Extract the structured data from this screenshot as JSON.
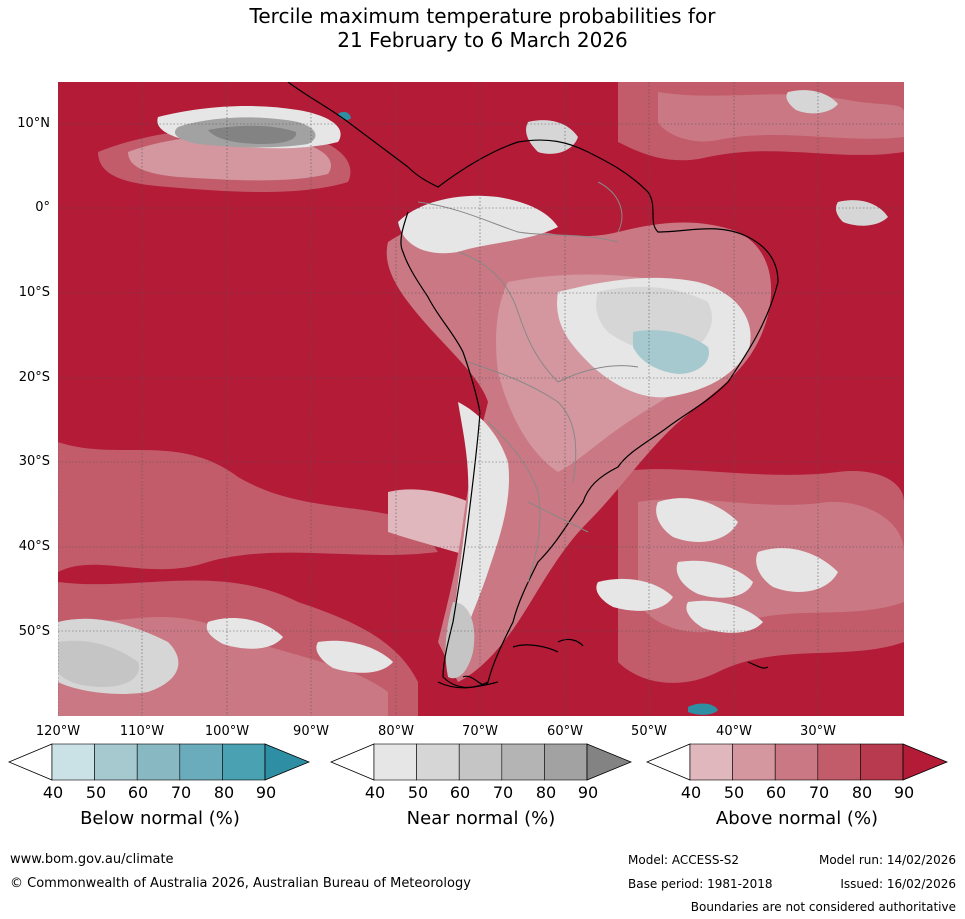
{
  "title": {
    "line1": "Tercile maximum temperature probabilities for",
    "line2": "21 February to 6 March 2026"
  },
  "axes": {
    "lat_labels": [
      "10°N",
      "0°",
      "10°S",
      "20°S",
      "30°S",
      "40°S",
      "50°S"
    ],
    "lon_labels": [
      "120°W",
      "110°W",
      "100°W",
      "90°W",
      "80°W",
      "70°W",
      "60°W",
      "50°W",
      "40°W",
      "30°W"
    ]
  },
  "legends": {
    "below": {
      "label": "Below normal (%)",
      "ticks": [
        "40",
        "50",
        "60",
        "70",
        "80",
        "90"
      ],
      "colors": [
        "#ffffff",
        "#cae1e6",
        "#a6c9cf",
        "#88b8c1",
        "#6aacbb",
        "#4aa1b2",
        "#2e8ea3"
      ]
    },
    "near": {
      "label": "Near normal (%)",
      "ticks": [
        "40",
        "50",
        "60",
        "70",
        "80",
        "90"
      ],
      "colors": [
        "#ffffff",
        "#e6e6e6",
        "#d6d6d6",
        "#c5c5c5",
        "#b4b4b4",
        "#a2a2a2",
        "#838383"
      ]
    },
    "above": {
      "label": "Above normal (%)",
      "ticks": [
        "40",
        "50",
        "60",
        "70",
        "80",
        "90"
      ],
      "colors": [
        "#ffffff",
        "#e0b7bd",
        "#d4979f",
        "#ca7883",
        "#c25c6a",
        "#b83a4f",
        "#b31b37"
      ]
    }
  },
  "footer": {
    "url": "www.bom.gov.au/climate",
    "copyright": "© Commonwealth of Australia 2026, Australian Bureau of Meteorology",
    "model": "Model: ACCESS-S2",
    "model_run": "Model run: 14/02/2026",
    "base_period": "Base period: 1981-2018",
    "issued": "Issued: 16/02/2026",
    "disclaimer": "Boundaries are not considered authoritative"
  }
}
